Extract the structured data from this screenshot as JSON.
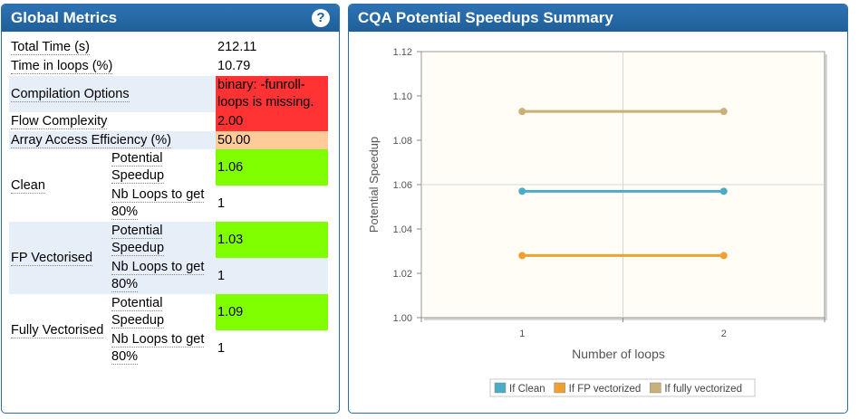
{
  "global": {
    "title": "Global Metrics",
    "help_glyph": "?",
    "rows": {
      "total_time": {
        "label": "Total Time (s)",
        "value": "212.11"
      },
      "time_loops": {
        "label": "Time in loops (%)",
        "value": "10.79"
      },
      "compilation": {
        "label": "Compilation Options",
        "value": "binary: -funroll-loops is missing.",
        "color": "#ff3333"
      },
      "flow": {
        "label": "Flow Complexity",
        "value": "2.00",
        "color": "#ff3333"
      },
      "array": {
        "label": "Array Access Efficiency (%)",
        "value": "50.00",
        "color": "#ffcc99"
      }
    },
    "groups": {
      "clean": {
        "label": "Clean",
        "speedup_label": "Potential Speedup",
        "speedup": "1.06",
        "loops_label": "Nb Loops to get 80%",
        "loops": "1"
      },
      "fp": {
        "label": "FP Vectorised",
        "speedup_label": "Potential Speedup",
        "speedup": "1.03",
        "loops_label": "Nb Loops to get 80%",
        "loops": "1"
      },
      "fully": {
        "label": "Fully Vectorised",
        "speedup_label": "Potential Speedup",
        "speedup": "1.09",
        "loops_label": "Nb Loops to get 80%",
        "loops": "1"
      }
    },
    "good_color": "#80ff00"
  },
  "chart_panel": {
    "title": "CQA Potential Speedups Summary"
  },
  "chart_data": {
    "type": "line",
    "title": "",
    "xlabel": "Number of loops",
    "ylabel": "Potential Speedup",
    "x": [
      1,
      2
    ],
    "x_tick_labels": [
      "1",
      "2"
    ],
    "xlim": [
      0.5,
      2.5
    ],
    "ylim": [
      1.0,
      1.12
    ],
    "y_tick_labels": [
      "1.00",
      "1.02",
      "1.04",
      "1.06",
      "1.08",
      "1.10",
      "1.12"
    ],
    "grid": true,
    "legend_position": "bottom",
    "series": [
      {
        "name": "If Clean",
        "values": [
          1.057,
          1.057
        ],
        "color": "#4bacc6"
      },
      {
        "name": "If FP vectorized",
        "values": [
          1.028,
          1.028
        ],
        "color": "#f0a030"
      },
      {
        "name": "If fully vectorized",
        "values": [
          1.093,
          1.093
        ],
        "color": "#c8b078"
      }
    ]
  }
}
